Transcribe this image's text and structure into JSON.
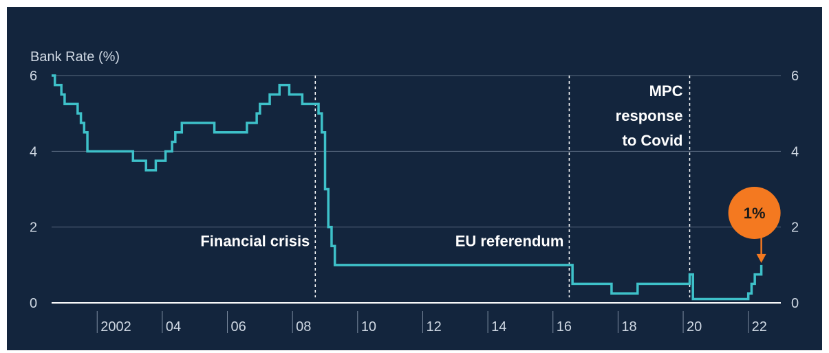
{
  "chart_data": {
    "type": "line",
    "ylabel": "Bank Rate (%)",
    "ylim": [
      0,
      6
    ],
    "y_ticks": [
      "0",
      "2",
      "4",
      "6"
    ],
    "x_ticks": [
      {
        "year": 2002,
        "label": "2002"
      },
      {
        "year": 2004,
        "label": "04"
      },
      {
        "year": 2006,
        "label": "06"
      },
      {
        "year": 2008,
        "label": "08"
      },
      {
        "year": 2010,
        "label": "10"
      },
      {
        "year": 2012,
        "label": "12"
      },
      {
        "year": 2014,
        "label": "14"
      },
      {
        "year": 2016,
        "label": "16"
      },
      {
        "year": 2018,
        "label": "18"
      },
      {
        "year": 2020,
        "label": "20"
      },
      {
        "year": 2022,
        "label": "22"
      }
    ],
    "xlim": [
      2000.6,
      2023.0
    ],
    "grid": true,
    "series_color": "#3ec1c9",
    "series": [
      {
        "x": [
          2000.6,
          2000.7,
          2000.9,
          2001.0,
          2001.1,
          2001.4,
          2001.5,
          2001.6,
          2001.7,
          2001.8,
          2002.1,
          2003.1,
          2003.5,
          2003.8,
          2004.1,
          2004.3,
          2004.4,
          2004.6,
          2005.6,
          2006.6,
          2006.9,
          2007.0,
          2007.3,
          2007.6,
          2007.9,
          2008.3,
          2008.8,
          2008.9,
          2009.0,
          2009.1,
          2009.2,
          2009.3,
          2016.6,
          2017.8,
          2018.6,
          2020.2,
          2020.3,
          2021.9,
          2022.0,
          2022.1,
          2022.2,
          2022.4
        ],
        "y": [
          6.0,
          5.75,
          5.5,
          5.25,
          5.25,
          5.0,
          4.75,
          4.5,
          4.0,
          4.0,
          4.0,
          3.75,
          3.5,
          3.75,
          4.0,
          4.25,
          4.5,
          4.75,
          4.5,
          4.75,
          5.0,
          5.25,
          5.5,
          5.75,
          5.5,
          5.25,
          5.0,
          4.5,
          3.0,
          2.0,
          1.5,
          1.0,
          0.5,
          0.25,
          0.5,
          0.75,
          0.1,
          0.1,
          0.25,
          0.5,
          0.75,
          1.0
        ]
      }
    ],
    "vlines": [
      {
        "x": 2008.7,
        "label": "Financial crisis"
      },
      {
        "x": 2016.5,
        "label": "EU referendum"
      },
      {
        "x": 2020.2,
        "label_lines": [
          "MPC",
          "response",
          "to Covid"
        ]
      }
    ],
    "callout": {
      "x": 2022.4,
      "y": 1.0,
      "text": "1%",
      "color": "#f47920"
    }
  }
}
